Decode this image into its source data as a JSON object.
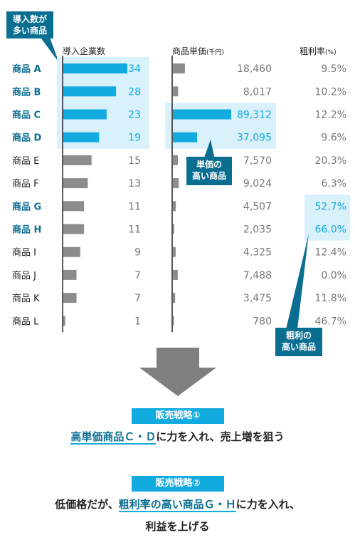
{
  "callouts": {
    "companies": "導入数が\n多い商品",
    "price": "単価の\n高い商品",
    "margin": "粗利の\n高い商品"
  },
  "headers": {
    "companies": "導入企業数",
    "price": "商品単価",
    "price_unit": "(千円)",
    "margin": "粗利率",
    "margin_unit": "(%)"
  },
  "colors": {
    "highlight": "#11abe0",
    "highlight_bg": "#d9f1fb",
    "normal_bar": "#8c8c8c",
    "highlight_text": "#0a6e91",
    "callout_bg": "#0a6e91"
  },
  "chart_data": {
    "type": "table",
    "columns": [
      "導入企業数",
      "商品単価(千円)",
      "粗利率(%)"
    ],
    "products": [
      "商品 A",
      "商品 B",
      "商品 C",
      "商品 D",
      "商品 E",
      "商品 F",
      "商品 G",
      "商品 H",
      "商品 I",
      "商品 J",
      "商品 K",
      "商品 L"
    ],
    "companies": [
      34,
      28,
      23,
      19,
      15,
      13,
      11,
      11,
      9,
      7,
      7,
      1
    ],
    "price": [
      18460,
      8017,
      89312,
      37095,
      7570,
      9024,
      4507,
      2035,
      4325,
      7488,
      3475,
      780
    ],
    "price_labels": [
      "18,460",
      "8,017",
      "89,312",
      "37,095",
      "7,570",
      "9,024",
      "4,507",
      "2,035",
      "4,325",
      "7,488",
      "3,475",
      "780"
    ],
    "margin": [
      9.5,
      10.2,
      12.2,
      9.6,
      20.3,
      6.3,
      52.7,
      66.0,
      12.4,
      0.0,
      11.8,
      46.7
    ],
    "margin_labels": [
      "9.5%",
      "10.2%",
      "12.2%",
      "9.6%",
      "20.3%",
      "6.3%",
      "52.7%",
      "66.0%",
      "12.4%",
      "0.0%",
      "11.8%",
      "46.7%"
    ],
    "highlight_products": [
      0,
      1,
      2,
      3,
      6,
      7
    ],
    "highlight_companies": [
      0,
      1,
      2,
      3
    ],
    "highlight_price": [
      2,
      3
    ],
    "highlight_margin": [
      6,
      7
    ]
  },
  "strategies": [
    {
      "label": "販売戦略①",
      "line1_pre": "",
      "line1_hl": "高単価商品Ｃ・Ｄ",
      "line1_post": "に力を入れ、売上増を狙う",
      "line2": ""
    },
    {
      "label": "販売戦略②",
      "line1_pre": "低価格だが、",
      "line1_hl": "粗利率の高い商品Ｇ・Ｈ",
      "line1_post": "に力を入れ、",
      "line2": "利益を上げる"
    }
  ]
}
